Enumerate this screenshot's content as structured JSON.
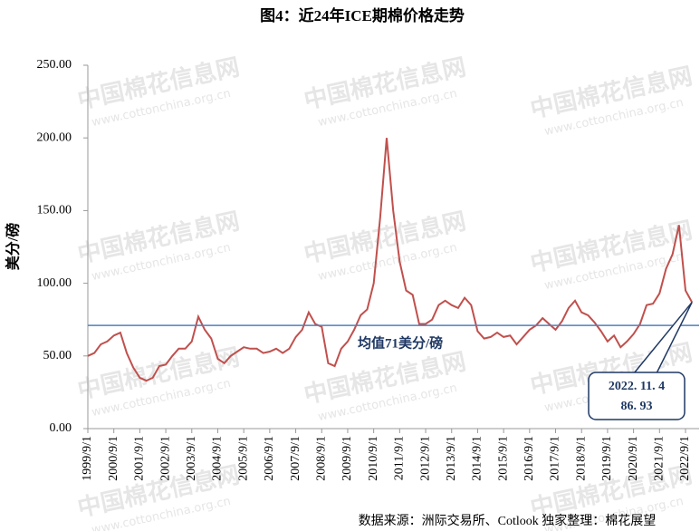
{
  "chart_data": {
    "type": "line",
    "title": "图4：近24年ICE期棉价格走势",
    "y_label": "美分/磅",
    "source": "数据来源：洲际交易所、Cotlook   独家整理：棉花展望",
    "watermark": [
      "中国棉花信息网",
      "www.cottonchina.org.cn"
    ],
    "categories": [
      "1999/9/1",
      null,
      null,
      null,
      "2000/9/1",
      null,
      null,
      null,
      "2001/9/1",
      null,
      null,
      null,
      "2002/9/1",
      null,
      null,
      null,
      "2003/9/1",
      null,
      null,
      null,
      "2004/9/1",
      null,
      null,
      null,
      "2005/9/1",
      null,
      null,
      null,
      "2006/9/1",
      null,
      null,
      null,
      "2007/9/1",
      null,
      null,
      null,
      "2008/9/1",
      null,
      null,
      null,
      "2009/9/1",
      null,
      null,
      null,
      "2010/9/1",
      null,
      null,
      null,
      "2011/9/1",
      null,
      null,
      null,
      "2012/9/1",
      null,
      null,
      null,
      "2013/9/1",
      null,
      null,
      null,
      "2014/9/1",
      null,
      null,
      null,
      "2015/9/1",
      null,
      null,
      null,
      "2016/9/1",
      null,
      null,
      null,
      "2017/9/1",
      null,
      null,
      null,
      "2018/9/1",
      null,
      null,
      null,
      "2019/9/1",
      null,
      null,
      null,
      "2020/9/1",
      null,
      null,
      null,
      "2021/9/1",
      null,
      null,
      null,
      "2022/9/1",
      null
    ],
    "series": [
      {
        "name": "ICE期棉",
        "color": "#c0504d",
        "values": [
          50,
          52,
          58,
          60,
          64,
          66,
          52,
          42,
          35,
          33,
          35,
          43,
          44,
          50,
          55,
          55,
          60,
          77,
          68,
          62,
          48,
          45,
          50,
          53,
          56,
          55,
          55,
          52,
          53,
          55,
          52,
          55,
          63,
          68,
          80,
          72,
          70,
          45,
          43,
          55,
          60,
          68,
          78,
          82,
          100,
          145,
          200,
          150,
          115,
          95,
          92,
          72,
          72,
          75,
          85,
          88,
          85,
          83,
          90,
          85,
          67,
          62,
          63,
          66,
          63,
          64,
          58,
          63,
          68,
          71,
          76,
          72,
          68,
          74,
          83,
          88,
          80,
          78,
          73,
          67,
          60,
          64,
          56,
          60,
          65,
          72,
          85,
          86,
          93,
          110,
          120,
          140,
          95,
          86.93
        ]
      }
    ],
    "mean": {
      "value": 71,
      "color": "#4f81bd",
      "label": "均值71美分/磅"
    },
    "callout": [
      "2022. 11. 4",
      "86. 93"
    ],
    "ylim": [
      0,
      250
    ],
    "yticks": [
      {
        "value": 0,
        "label": "0.00"
      },
      {
        "value": 50,
        "label": "50.00"
      },
      {
        "value": 100,
        "label": "100.00"
      },
      {
        "value": 150,
        "label": "150.00"
      },
      {
        "value": 200,
        "label": "200.00"
      },
      {
        "value": 250,
        "label": "250.00"
      }
    ],
    "grid": false
  }
}
